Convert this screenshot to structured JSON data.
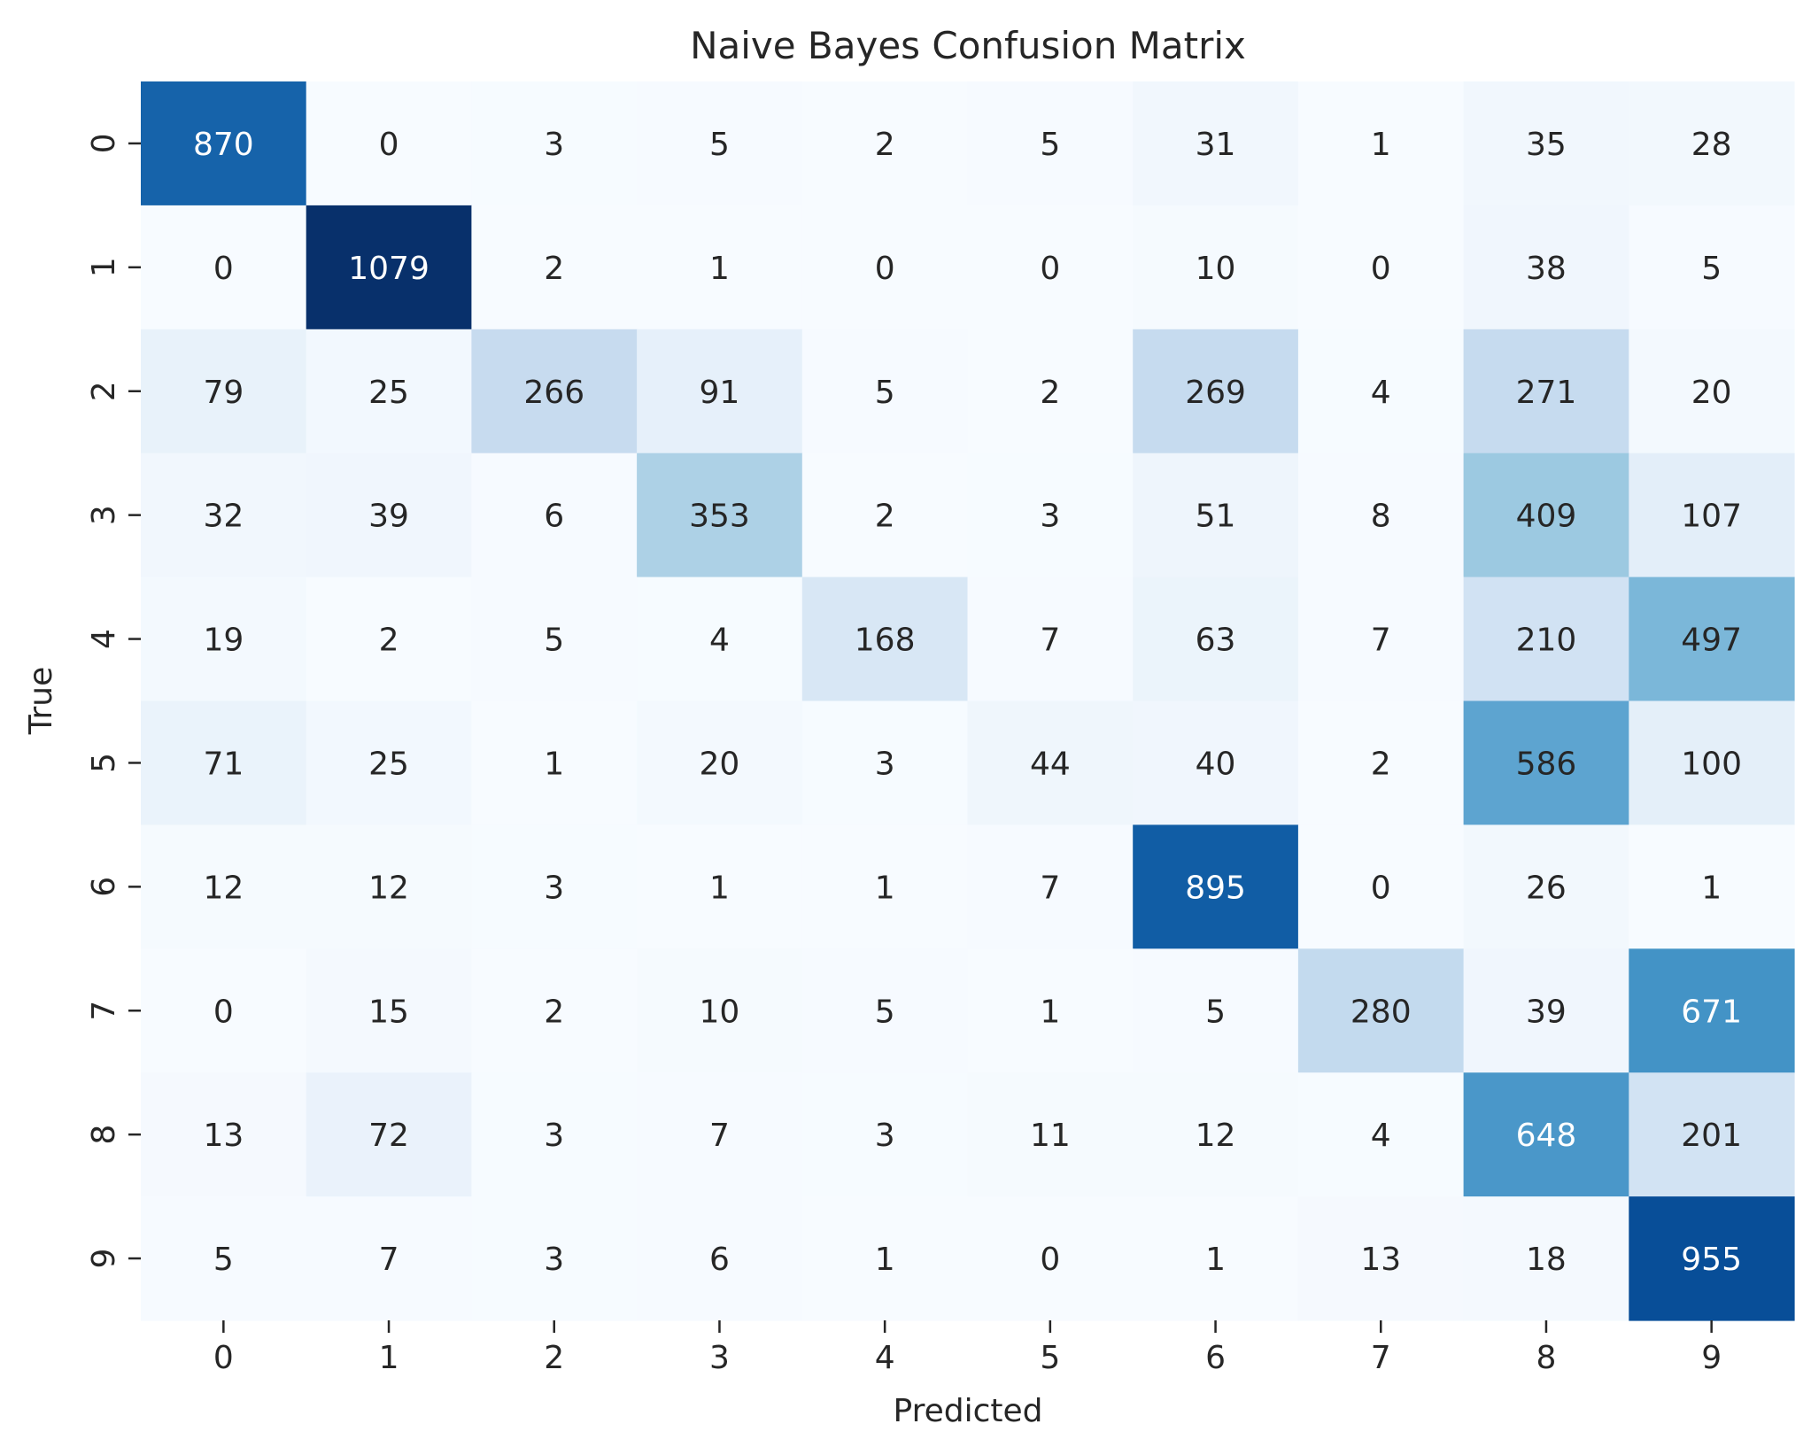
{
  "chart_data": {
    "type": "heatmap",
    "title": "Naive Bayes Confusion Matrix",
    "xlabel": "Predicted",
    "ylabel": "True",
    "x_categories": [
      "0",
      "1",
      "2",
      "3",
      "4",
      "5",
      "6",
      "7",
      "8",
      "9"
    ],
    "y_categories": [
      "0",
      "1",
      "2",
      "3",
      "4",
      "5",
      "6",
      "7",
      "8",
      "9"
    ],
    "values": [
      [
        870,
        0,
        3,
        5,
        2,
        5,
        31,
        1,
        35,
        28
      ],
      [
        0,
        1079,
        2,
        1,
        0,
        0,
        10,
        0,
        38,
        5
      ],
      [
        79,
        25,
        266,
        91,
        5,
        2,
        269,
        4,
        271,
        20
      ],
      [
        32,
        39,
        6,
        353,
        2,
        3,
        51,
        8,
        409,
        107
      ],
      [
        19,
        2,
        5,
        4,
        168,
        7,
        63,
        7,
        210,
        497
      ],
      [
        71,
        25,
        1,
        20,
        3,
        44,
        40,
        2,
        586,
        100
      ],
      [
        12,
        12,
        3,
        1,
        1,
        7,
        895,
        0,
        26,
        1
      ],
      [
        0,
        15,
        2,
        10,
        5,
        1,
        5,
        280,
        39,
        671
      ],
      [
        13,
        72,
        3,
        7,
        3,
        11,
        12,
        4,
        648,
        201
      ],
      [
        5,
        7,
        3,
        6,
        1,
        0,
        1,
        13,
        18,
        955
      ]
    ],
    "colormap": "Blues",
    "value_range": [
      0,
      1079
    ],
    "colorbar": false,
    "grid": false
  }
}
